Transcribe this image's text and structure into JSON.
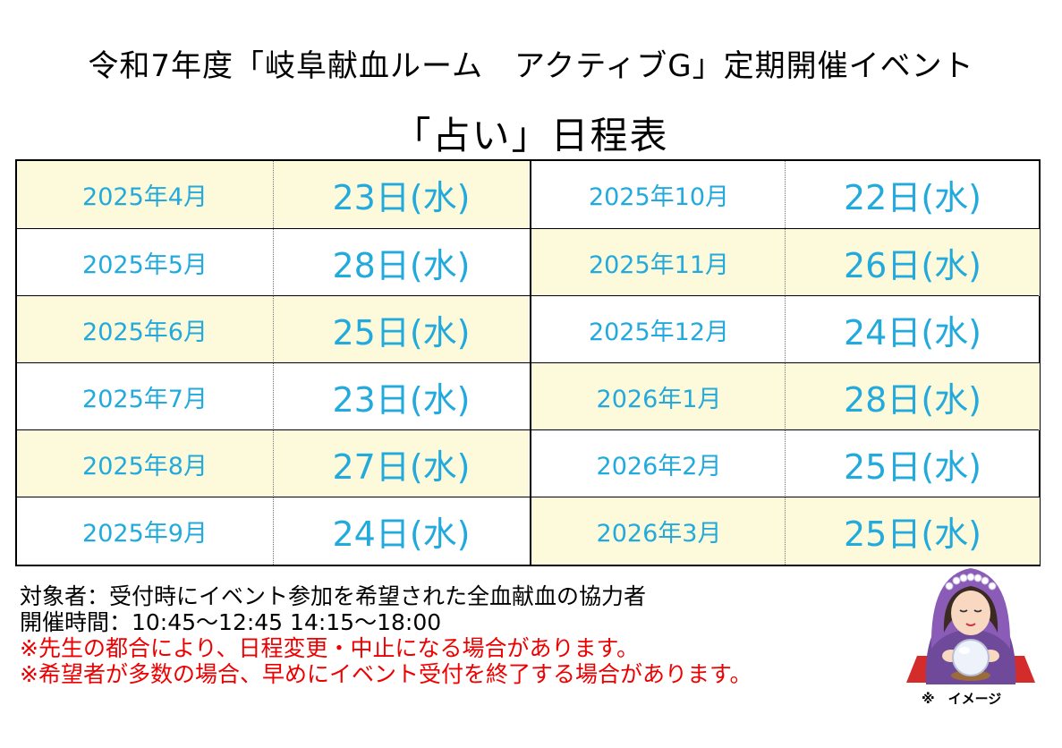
{
  "header": {
    "line1": "令和7年度「岐阜献血ルーム　アクティブG」定期開催イベント",
    "line2": "「占い」日程表"
  },
  "schedule": [
    {
      "left": {
        "month": "2025年4月",
        "day": "23日(水)"
      },
      "right": {
        "month": "2025年10月",
        "day": "22日(水)"
      }
    },
    {
      "left": {
        "month": "2025年5月",
        "day": "28日(水)"
      },
      "right": {
        "month": "2025年11月",
        "day": "26日(水)"
      }
    },
    {
      "left": {
        "month": "2025年6月",
        "day": "25日(水)"
      },
      "right": {
        "month": "2025年12月",
        "day": "24日(水)"
      }
    },
    {
      "left": {
        "month": "2025年7月",
        "day": "23日(水)"
      },
      "right": {
        "month": "2026年1月",
        "day": "28日(水)"
      }
    },
    {
      "left": {
        "month": "2025年8月",
        "day": "27日(水)"
      },
      "right": {
        "month": "2026年2月",
        "day": "25日(水)"
      }
    },
    {
      "left": {
        "month": "2025年9月",
        "day": "24日(水)"
      },
      "right": {
        "month": "2026年3月",
        "day": "25日(水)"
      }
    }
  ],
  "notes": {
    "target": "対象者：受付時にイベント参加を希望された全血献血の協力者",
    "hours": "開催時間：10:45～12:45 14:15～18:00",
    "warning1": "※先生の都合により、日程変更・中止になる場合があります。",
    "warning2": "※希望者が多数の場合、早めにイベント受付を終了する場合があります。"
  },
  "illustration": {
    "icon": "fortune-teller-icon",
    "caption": "※　イメージ"
  },
  "colors": {
    "date_text": "#22aadd",
    "highlight": "#fdfadb",
    "warning": "#ee0000"
  }
}
